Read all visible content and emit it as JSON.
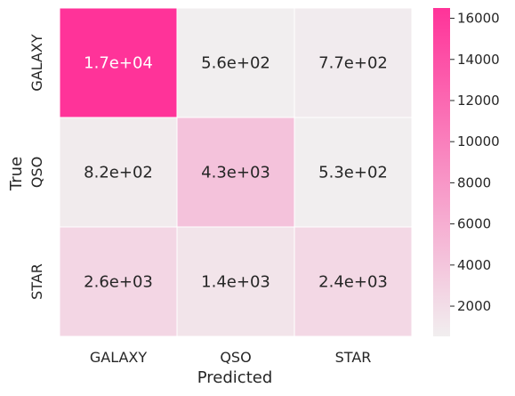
{
  "chart_data": {
    "type": "heatmap",
    "title": "",
    "xlabel": "Predicted",
    "ylabel": "True",
    "x_categories": [
      "GALAXY",
      "QSO",
      "STAR"
    ],
    "y_categories": [
      "GALAXY",
      "QSO",
      "STAR"
    ],
    "values": [
      [
        17000,
        560,
        770
      ],
      [
        820,
        4300,
        530
      ],
      [
        2600,
        1400,
        2400
      ]
    ],
    "annotations": [
      [
        "1.7e+04",
        "5.6e+02",
        "7.7e+02"
      ],
      [
        "8.2e+02",
        "4.3e+03",
        "5.3e+02"
      ],
      [
        "2.6e+03",
        "1.4e+03",
        "2.4e+03"
      ]
    ],
    "colorbar": {
      "range": [
        530,
        16500
      ],
      "ticks": [
        2000,
        4000,
        6000,
        8000,
        10000,
        12000,
        14000,
        16000
      ],
      "tick_labels": [
        "2000",
        "4000",
        "6000",
        "8000",
        "10000",
        "12000",
        "14000",
        "16000"
      ]
    },
    "colors": {
      "low": "#f1eeef",
      "high": "#ff3399",
      "annotation_dark_text": "#262626",
      "annotation_light_text": "#ffffff"
    }
  }
}
